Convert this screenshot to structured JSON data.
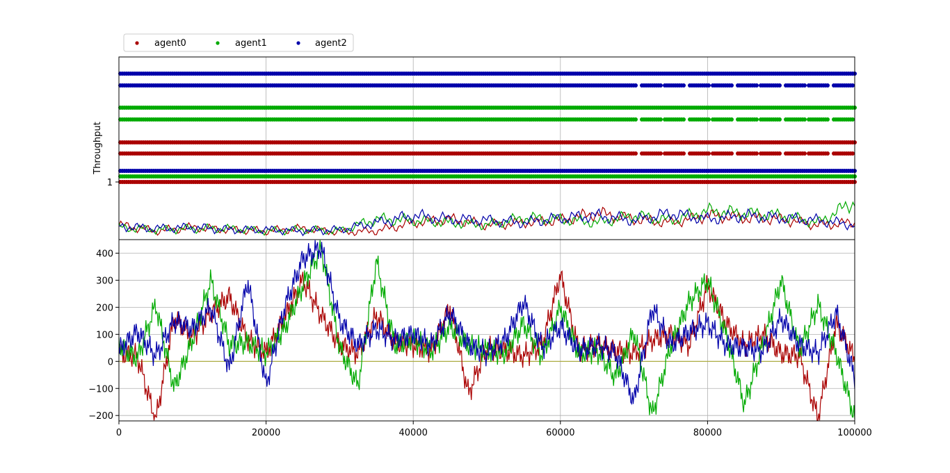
{
  "chart_data": [
    {
      "type": "scatter",
      "panel": "top",
      "ylabel": "Throughput",
      "y_ticks": [
        "1"
      ],
      "grid": true,
      "legend": {
        "placement": "top-left, above plot",
        "entries": [
          "agent0",
          "agent1",
          "agent2"
        ]
      },
      "note": "constant-level dot rows per agent across x range",
      "series": [
        {
          "name": "agent0",
          "color": "#aa0000",
          "rows": [
            "base",
            "lower",
            "upper"
          ]
        },
        {
          "name": "agent1",
          "color": "#00aa00",
          "rows": [
            "base",
            "lower",
            "upper"
          ]
        },
        {
          "name": "agent2",
          "color": "#0000aa",
          "rows": [
            "base",
            "lower",
            "upper"
          ]
        }
      ],
      "throughput_traces": {
        "x": [
          0,
          5000,
          10000,
          15000,
          20000,
          25000,
          30000,
          35000,
          40000,
          45000,
          50000,
          55000,
          60000,
          65000,
          70000,
          75000,
          80000,
          85000,
          90000,
          95000,
          100000
        ],
        "agent0": [
          0.1,
          0.05,
          0.08,
          0.06,
          0.05,
          0.07,
          0.04,
          0.05,
          0.12,
          0.15,
          0.1,
          0.12,
          0.14,
          0.2,
          0.15,
          0.12,
          0.18,
          0.16,
          0.15,
          0.1,
          0.12
        ],
        "agent1": [
          0.08,
          0.06,
          0.07,
          0.07,
          0.05,
          0.06,
          0.05,
          0.15,
          0.14,
          0.12,
          0.1,
          0.16,
          0.15,
          0.12,
          0.18,
          0.14,
          0.22,
          0.2,
          0.18,
          0.12,
          0.3
        ],
        "agent2": [
          0.09,
          0.07,
          0.08,
          0.06,
          0.06,
          0.05,
          0.06,
          0.12,
          0.18,
          0.15,
          0.14,
          0.12,
          0.16,
          0.18,
          0.14,
          0.2,
          0.15,
          0.18,
          0.16,
          0.14,
          0.1
        ]
      }
    },
    {
      "type": "line",
      "panel": "bottom",
      "xlim": [
        0,
        100000
      ],
      "ylim": [
        -220,
        450
      ],
      "x_ticks": [
        "0",
        "20000",
        "40000",
        "60000",
        "80000",
        "100000"
      ],
      "y_ticks": [
        "400",
        "300",
        "200",
        "100",
        "0",
        "−100",
        "−200"
      ],
      "grid": true,
      "zero_line_color": "#aaaa33",
      "x": [
        0,
        2500,
        5000,
        7500,
        10000,
        12500,
        15000,
        17500,
        20000,
        22500,
        25000,
        27500,
        30000,
        32500,
        35000,
        37500,
        40000,
        42500,
        45000,
        47500,
        50000,
        52500,
        55000,
        57500,
        60000,
        62500,
        65000,
        67500,
        70000,
        72500,
        75000,
        77500,
        80000,
        82500,
        85000,
        87500,
        90000,
        92500,
        95000,
        97500,
        100000
      ],
      "series": [
        {
          "name": "agent0",
          "color": "#aa0000",
          "values": [
            30,
            20,
            -220,
            160,
            90,
            180,
            240,
            80,
            30,
            160,
            300,
            170,
            60,
            30,
            170,
            70,
            60,
            40,
            200,
            -120,
            50,
            40,
            20,
            60,
            320,
            40,
            60,
            40,
            30,
            80,
            100,
            60,
            280,
            140,
            60,
            100,
            30,
            20,
            -210,
            140,
            10
          ]
        },
        {
          "name": "agent1",
          "color": "#00aa00",
          "values": [
            60,
            10,
            210,
            -100,
            80,
            300,
            60,
            70,
            30,
            120,
            280,
            420,
            50,
            -90,
            370,
            60,
            80,
            40,
            130,
            60,
            40,
            30,
            140,
            20,
            200,
            30,
            40,
            -60,
            110,
            -200,
            60,
            220,
            300,
            100,
            -160,
            60,
            300,
            40,
            210,
            30,
            -210
          ]
        },
        {
          "name": "agent2",
          "color": "#0000aa",
          "values": [
            40,
            110,
            20,
            150,
            120,
            200,
            -30,
            300,
            -90,
            200,
            380,
            420,
            150,
            60,
            120,
            80,
            100,
            60,
            180,
            60,
            30,
            80,
            220,
            50,
            130,
            40,
            60,
            30,
            -150,
            200,
            60,
            110,
            140,
            60,
            50,
            40,
            160,
            60,
            30,
            180,
            -60
          ]
        }
      ]
    }
  ]
}
